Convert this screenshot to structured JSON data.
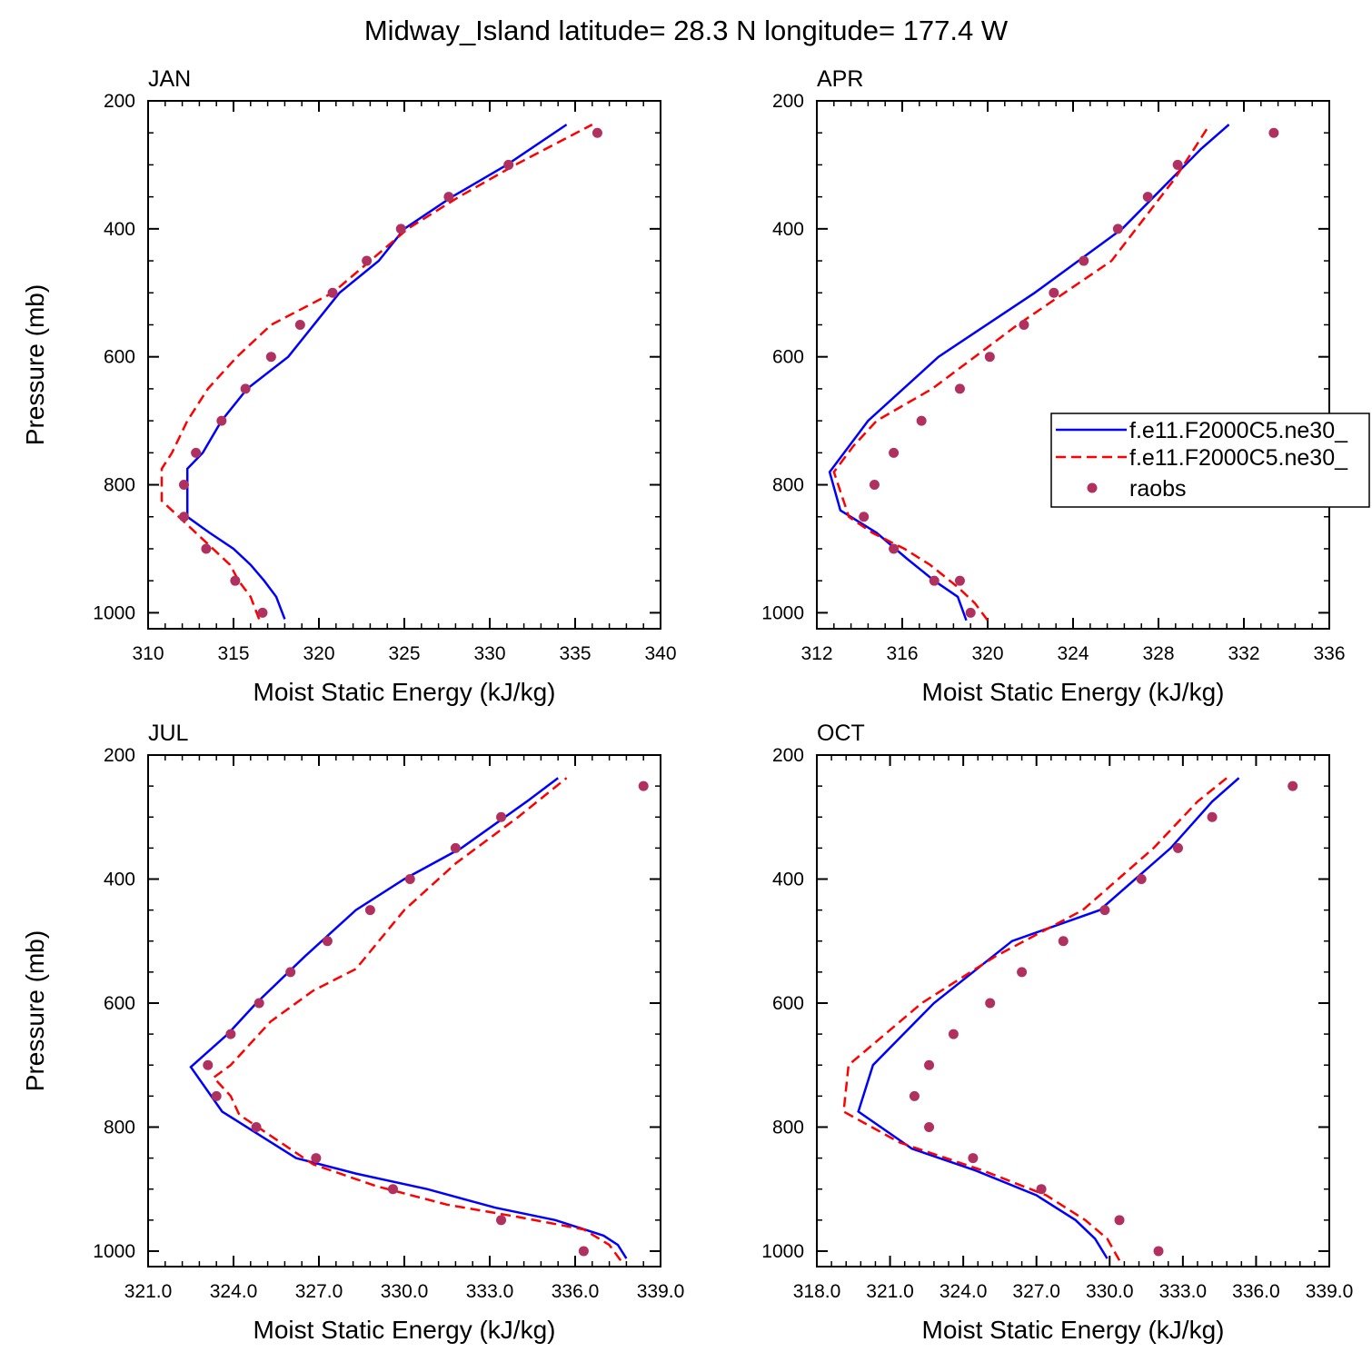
{
  "title": "Midway_Island  latitude= 28.3 N longitude= 177.4 W",
  "colors": {
    "model_a": "#0000ff",
    "model_b": "#ff0000",
    "raobs": "#b03060",
    "axes": "#000000"
  },
  "legend": {
    "placement": "right of APR panel",
    "entries": [
      {
        "label": "f.e11.F2000C5.ne30_",
        "style": "solid",
        "color": "#0000ff"
      },
      {
        "label": "f.e11.F2000C5.ne30_",
        "style": "dashed",
        "color": "#ff0000"
      },
      {
        "label": "raobs",
        "style": "marker",
        "color": "#b03060"
      }
    ]
  },
  "chart_data": [
    {
      "type": "line",
      "title": "JAN",
      "xlabel": "Moist Static Energy (kJ/kg)",
      "ylabel": "Pressure (mb)",
      "xlim": [
        310,
        340
      ],
      "ylim": [
        200,
        1025
      ],
      "y_inverted": true,
      "xticks": [
        310,
        315,
        320,
        325,
        330,
        335,
        340
      ],
      "xtick_labels": [
        "310",
        "315",
        "320",
        "325",
        "330",
        "335",
        "340"
      ],
      "yticks": [
        200,
        400,
        600,
        800,
        1000
      ],
      "ytick_labels": [
        "200",
        "400",
        "600",
        "800",
        "1000"
      ],
      "series": [
        {
          "name": "f.e11.F2000C5.ne30_",
          "kind": "solid",
          "x": [
            318,
            317.5,
            316.8,
            316,
            315,
            313.6,
            312.3,
            312.3,
            312.3,
            313.2,
            314.3,
            315.8,
            318.2,
            321.2,
            323.5,
            325,
            327.8,
            331,
            334.5
          ],
          "y": [
            1010,
            975,
            950,
            925,
            900,
            875,
            850,
            800,
            775,
            750,
            700,
            650,
            600,
            500,
            450,
            400,
            350,
            300,
            237
          ]
        },
        {
          "name": "f.e11.F2000C5.ne30_",
          "kind": "dashed",
          "x": [
            316.5,
            316,
            315.3,
            314.8,
            313.8,
            312.8,
            311.8,
            310.8,
            310.8,
            311.4,
            312.3,
            313.5,
            315.2,
            317.2,
            320.8,
            323,
            325.2,
            328.2,
            331.5,
            336
          ],
          "y": [
            1010,
            975,
            950,
            925,
            900,
            875,
            850,
            825,
            775,
            750,
            700,
            650,
            600,
            550,
            500,
            450,
            400,
            350,
            300,
            237
          ]
        },
        {
          "name": "raobs",
          "kind": "marker",
          "x": [
            316.7,
            315.1,
            313.4,
            312.1,
            312.1,
            312.8,
            314.3,
            315.7,
            317.2,
            318.9,
            320.8,
            322.8,
            324.8,
            327.6,
            331.1,
            336.3
          ],
          "y": [
            1000,
            950,
            900,
            850,
            800,
            750,
            700,
            650,
            600,
            550,
            500,
            450,
            400,
            350,
            300,
            250
          ]
        }
      ]
    },
    {
      "type": "line",
      "title": "APR",
      "xlabel": "Moist Static Energy (kJ/kg)",
      "ylabel": "",
      "xlim": [
        312,
        336
      ],
      "ylim": [
        200,
        1025
      ],
      "y_inverted": true,
      "xticks": [
        312,
        316,
        320,
        324,
        328,
        332,
        336
      ],
      "xtick_labels": [
        "312",
        "316",
        "320",
        "324",
        "328",
        "332",
        "336"
      ],
      "yticks": [
        200,
        400,
        600,
        800,
        1000
      ],
      "ytick_labels": [
        "200",
        "400",
        "600",
        "800",
        "1000"
      ],
      "series": [
        {
          "name": "f.e11.F2000C5.ne30_",
          "kind": "solid",
          "x": [
            319,
            318.6,
            317.5,
            316.2,
            314.8,
            313.1,
            312.6,
            314.4,
            317.7,
            322.2,
            326.3,
            330,
            331.3
          ],
          "y": [
            1012,
            975,
            950,
            915,
            875,
            840,
            780,
            700,
            600,
            500,
            400,
            275,
            237
          ]
        },
        {
          "name": "f.e11.F2000C5.ne30_",
          "kind": "dashed",
          "x": [
            320,
            319.4,
            318.6,
            317.3,
            316.1,
            314.6,
            313.5,
            312.8,
            313.7,
            314.8,
            317.4,
            321.4,
            325.8,
            328.8,
            330.4
          ],
          "y": [
            1012,
            985,
            960,
            925,
            900,
            875,
            850,
            780,
            740,
            700,
            650,
            550,
            450,
            320,
            237
          ]
        },
        {
          "name": "raobs",
          "kind": "marker",
          "x": [
            319.2,
            318.7,
            317.5,
            315.6,
            314.2,
            314.7,
            315.6,
            316.9,
            318.7,
            320.1,
            321.7,
            323.1,
            324.5,
            326.1,
            327.5,
            328.9,
            333.4
          ],
          "y": [
            1000,
            950,
            950,
            900,
            850,
            800,
            750,
            700,
            650,
            600,
            550,
            500,
            450,
            400,
            350,
            300,
            250
          ]
        }
      ]
    },
    {
      "type": "line",
      "title": "JUL",
      "xlabel": "Moist Static Energy (kJ/kg)",
      "ylabel": "Pressure (mb)",
      "xlim": [
        321,
        339
      ],
      "ylim": [
        200,
        1025
      ],
      "y_inverted": true,
      "xticks": [
        321,
        324,
        327,
        330,
        333,
        336,
        339
      ],
      "xtick_labels": [
        "321.0",
        "324.0",
        "327.0",
        "330.0",
        "333.0",
        "336.0",
        "339.0"
      ],
      "yticks": [
        200,
        400,
        600,
        800,
        1000
      ],
      "ytick_labels": [
        "200",
        "400",
        "600",
        "800",
        "1000"
      ],
      "series": [
        {
          "name": "f.e11.F2000C5.ne30_",
          "kind": "solid",
          "x": [
            337.8,
            337.5,
            337,
            335.3,
            333.2,
            330.8,
            328.3,
            326.2,
            323.6,
            322.5,
            323.8,
            324.8,
            326.5,
            328.3,
            330,
            332,
            334.3,
            335.4
          ],
          "y": [
            1012,
            990,
            975,
            950,
            930,
            900,
            875,
            850,
            775,
            703,
            650,
            600,
            525,
            450,
            400,
            350,
            275,
            237
          ]
        },
        {
          "name": "f.e11.F2000C5.ne30_",
          "kind": "dashed",
          "x": [
            337.6,
            337.2,
            336.3,
            334,
            331.5,
            329,
            326.8,
            324.2,
            323.9,
            323.3,
            323.9,
            325.3,
            326.8,
            328.3,
            330,
            331.8,
            334,
            335.7
          ],
          "y": [
            1015,
            990,
            965,
            945,
            925,
            895,
            860,
            780,
            750,
            720,
            700,
            630,
            580,
            545,
            450,
            375,
            300,
            237
          ]
        },
        {
          "name": "raobs",
          "kind": "marker",
          "x": [
            336.3,
            333.4,
            329.6,
            326.9,
            324.8,
            323.4,
            323.1,
            323.9,
            324.9,
            326,
            327.3,
            328.8,
            330.2,
            331.8,
            333.4,
            338.4
          ],
          "y": [
            1000,
            950,
            900,
            850,
            800,
            750,
            700,
            650,
            600,
            550,
            500,
            450,
            400,
            350,
            300,
            250
          ]
        }
      ]
    },
    {
      "type": "line",
      "title": "OCT",
      "xlabel": "Moist Static Energy (kJ/kg)",
      "ylabel": "",
      "xlim": [
        318,
        339
      ],
      "ylim": [
        200,
        1025
      ],
      "y_inverted": true,
      "xticks": [
        318,
        321,
        324,
        327,
        330,
        333,
        336,
        339
      ],
      "xtick_labels": [
        "318.0",
        "321.0",
        "324.0",
        "327.0",
        "330.0",
        "333.0",
        "336.0",
        "339.0"
      ],
      "yticks": [
        200,
        400,
        600,
        800,
        1000
      ],
      "ytick_labels": [
        "200",
        "400",
        "600",
        "800",
        "1000"
      ],
      "series": [
        {
          "name": "f.e11.F2000C5.ne30_",
          "kind": "solid",
          "x": [
            329.9,
            329.4,
            328.6,
            327,
            324.5,
            321.9,
            319.7,
            320.3,
            322.8,
            326,
            329.6,
            332.5,
            334.2,
            335.3
          ],
          "y": [
            1012,
            980,
            950,
            910,
            870,
            835,
            775,
            700,
            600,
            500,
            450,
            350,
            275,
            237
          ]
        },
        {
          "name": "f.e11.F2000C5.ne30_",
          "kind": "dashed",
          "x": [
            330.4,
            329.9,
            329,
            327.4,
            324.8,
            321.4,
            319.1,
            319.3,
            322.3,
            325.3,
            328.9,
            331.8,
            333.6,
            334.8
          ],
          "y": [
            1015,
            980,
            950,
            910,
            870,
            825,
            775,
            700,
            600,
            525,
            450,
            350,
            275,
            237
          ]
        },
        {
          "name": "raobs",
          "kind": "marker",
          "x": [
            332,
            330.4,
            327.2,
            324.4,
            322.6,
            322,
            322.6,
            323.6,
            325.1,
            326.4,
            328.1,
            329.8,
            331.3,
            332.8,
            334.2,
            337.5
          ],
          "y": [
            1000,
            950,
            900,
            850,
            800,
            750,
            700,
            650,
            600,
            550,
            500,
            450,
            400,
            350,
            300,
            250
          ]
        }
      ]
    }
  ]
}
